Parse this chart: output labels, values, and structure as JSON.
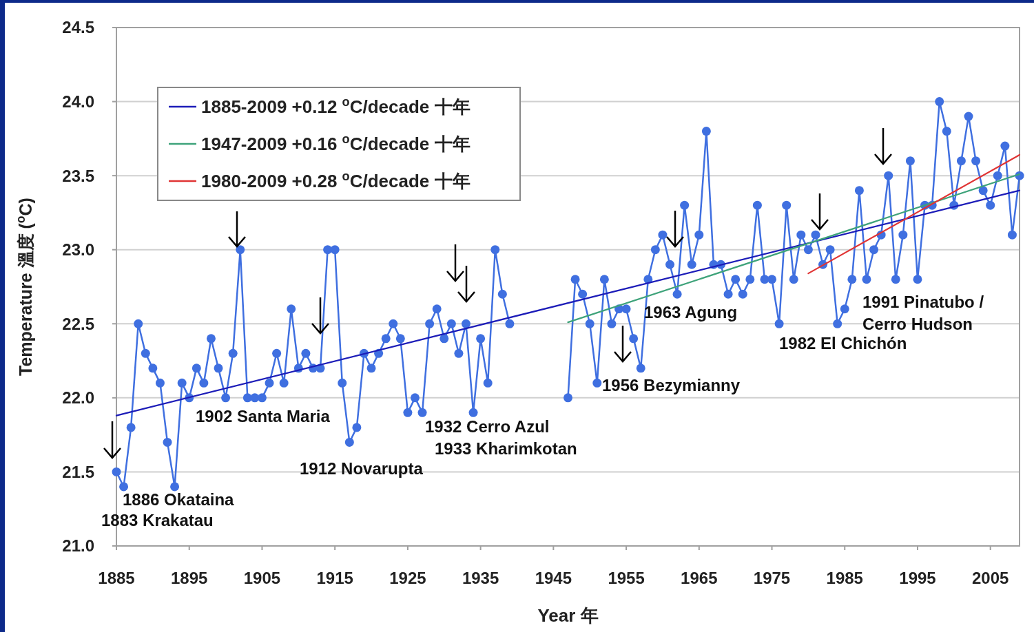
{
  "chart_data": {
    "type": "line",
    "xlabel": "Year 年",
    "ylabel": "Temperature 溫度 ($^{o}$C)",
    "xlim": [
      1885,
      2009
    ],
    "xticks": [
      1885,
      1895,
      1905,
      1915,
      1925,
      1935,
      1945,
      1955,
      1965,
      1975,
      1985,
      1995,
      2005
    ],
    "ylim": [
      21,
      24.5
    ],
    "yticks": [
      {
        "value": 21,
        "label": "21.0"
      },
      21.5,
      {
        "value": 22,
        "label": "22.0"
      },
      22.5,
      {
        "value": 23,
        "label": "23.0"
      },
      23.5,
      {
        "value": 24,
        "label": "24.0"
      },
      24.5
    ],
    "grid": "y",
    "legend": "top left",
    "series": [
      {
        "color": "#3f6fe0",
        "marker": "circle",
        "x": [
          1885,
          1886,
          1887,
          1888,
          1889,
          1890,
          1891,
          1892,
          1893,
          1894,
          1895,
          1896,
          1897,
          1898,
          1899,
          1900,
          1901,
          1902,
          1903,
          1904,
          1905,
          1906,
          1907,
          1908,
          1909,
          1910,
          1911,
          1912,
          1913,
          1914,
          1915,
          1916,
          1917,
          1918,
          1919,
          1920,
          1921,
          1922,
          1923,
          1924,
          1925,
          1926,
          1927,
          1928,
          1929,
          1930,
          1931,
          1932,
          1933,
          1934,
          1935,
          1936,
          1937,
          1938,
          1939,
          1940,
          1941,
          1942,
          1943,
          1944,
          1945,
          1946,
          1947,
          1948,
          1949,
          1950,
          1951,
          1952,
          1953,
          1954,
          1955,
          1956,
          1957,
          1958,
          1959,
          1960,
          1961,
          1962,
          1963,
          1964,
          1965,
          1966,
          1967,
          1968,
          1969,
          1970,
          1971,
          1972,
          1973,
          1974,
          1975,
          1976,
          1977,
          1978,
          1979,
          1980,
          1981,
          1982,
          1983,
          1984,
          1985,
          1986,
          1987,
          1988,
          1989,
          1990,
          1991,
          1992,
          1993,
          1994,
          1995,
          1996,
          1997,
          1998,
          1999,
          2000,
          2001,
          2002,
          2003,
          2004,
          2005,
          2006,
          2007,
          2008,
          2009
        ],
        "values": [
          21.5,
          21.4,
          21.8,
          22.5,
          22.3,
          22.2,
          22.1,
          21.7,
          21.4,
          22.1,
          22.0,
          22.2,
          22.1,
          22.4,
          22.2,
          22.0,
          22.3,
          23.0,
          22.0,
          22.0,
          22.0,
          22.1,
          22.3,
          22.1,
          22.6,
          22.2,
          22.3,
          22.2,
          22.2,
          23.0,
          23.0,
          22.1,
          21.7,
          21.8,
          22.3,
          22.2,
          22.3,
          22.4,
          22.5,
          22.4,
          21.9,
          22.0,
          21.9,
          22.5,
          22.6,
          22.4,
          22.5,
          22.3,
          22.5,
          21.9,
          22.4,
          22.1,
          23.0,
          22.7,
          22.5,
          null,
          null,
          null,
          null,
          null,
          null,
          null,
          22.0,
          22.8,
          22.7,
          22.5,
          22.1,
          22.8,
          22.5,
          22.6,
          22.6,
          22.4,
          22.2,
          22.8,
          23.0,
          23.1,
          22.9,
          22.7,
          23.3,
          22.9,
          23.1,
          23.8,
          22.9,
          22.9,
          22.7,
          22.8,
          22.7,
          22.8,
          23.3,
          22.8,
          22.8,
          22.5,
          23.3,
          22.8,
          23.1,
          23.0,
          23.1,
          22.9,
          23.0,
          22.5,
          22.6,
          22.8,
          23.4,
          22.8,
          23.0,
          23.1,
          23.5,
          22.8,
          23.1,
          23.6,
          22.8,
          23.3,
          23.3,
          24.0,
          23.8,
          23.3,
          23.6,
          23.9,
          23.6,
          23.4,
          23.3,
          23.5,
          23.7,
          23.1,
          23.5
        ]
      },
      {
        "name": "1885-2009 +0.12 $^{o}$C/decade 十年",
        "color": "#1c1cb8",
        "marker": "none",
        "x": [
          1885,
          2009
        ],
        "values": [
          21.88,
          23.4
        ]
      },
      {
        "name": "1947-2009 +0.16 $^{o}$C/decade 十年",
        "color": "#3ea37a",
        "marker": "none",
        "x": [
          1947,
          2009
        ],
        "values": [
          22.51,
          23.51
        ]
      },
      {
        "name": "1980-2009 +0.28 $^{o}$C/decade 十年",
        "color": "#e03434",
        "marker": "none",
        "x": [
          1980,
          2009
        ],
        "values": [
          22.84,
          23.64
        ]
      }
    ],
    "annotations": [
      "1883 Krakatau",
      "1886 Okataina",
      "1902 Santa Maria",
      "1912 Novarupta",
      "1932 Cerro Azul",
      "1933 Kharimkotan",
      "1956 Bezymianny",
      "1963 Agung",
      "1982 El Chichón",
      "1991 Pinatubo /\nCerro Hudson"
    ]
  }
}
